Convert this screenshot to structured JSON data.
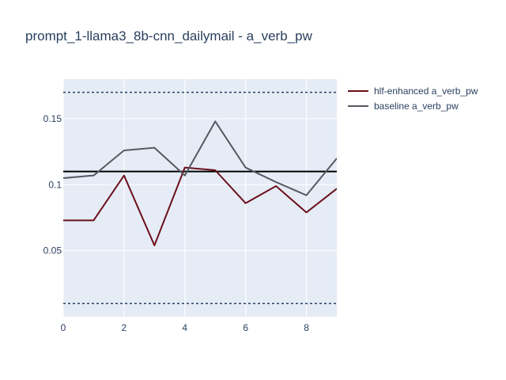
{
  "chart_data": {
    "type": "line",
    "title": "prompt_1-llama3_8b-cnn_dailymail - a_verb_pw",
    "xlabel": "",
    "ylabel": "",
    "xlim": [
      0,
      9
    ],
    "ylim": [
      0,
      0.18
    ],
    "x": [
      0,
      1,
      2,
      3,
      4,
      5,
      6,
      7,
      8,
      9
    ],
    "x_ticks": [
      0,
      2,
      4,
      6,
      8
    ],
    "x_tick_labels": [
      "0",
      "2",
      "4",
      "6",
      "8"
    ],
    "y_ticks": [
      0.05,
      0.1,
      0.15
    ],
    "y_tick_labels": [
      "0.05",
      "0.1",
      "0.15"
    ],
    "grid": true,
    "legend_position": "top-right, outside plot",
    "series": [
      {
        "name": "hlf-enhanced a_verb_pw",
        "color": "#6b0f1a",
        "values": [
          0.073,
          0.073,
          0.107,
          0.054,
          0.113,
          0.111,
          0.086,
          0.099,
          0.079,
          0.097
        ]
      },
      {
        "name": "baseline a_verb_pw",
        "color": "#555a60",
        "values": [
          0.105,
          0.107,
          0.126,
          0.128,
          0.107,
          0.148,
          0.113,
          0.102,
          0.092,
          0.12
        ]
      }
    ],
    "reference_lines": [
      {
        "y": 0.11,
        "style": "solid",
        "color": "#000000"
      },
      {
        "y": 0.17,
        "style": "dotted",
        "color": "#2a3f5f"
      },
      {
        "y": 0.01,
        "style": "dotted",
        "color": "#2a3f5f"
      }
    ],
    "plot_bgcolor": "#e5ecf6"
  }
}
